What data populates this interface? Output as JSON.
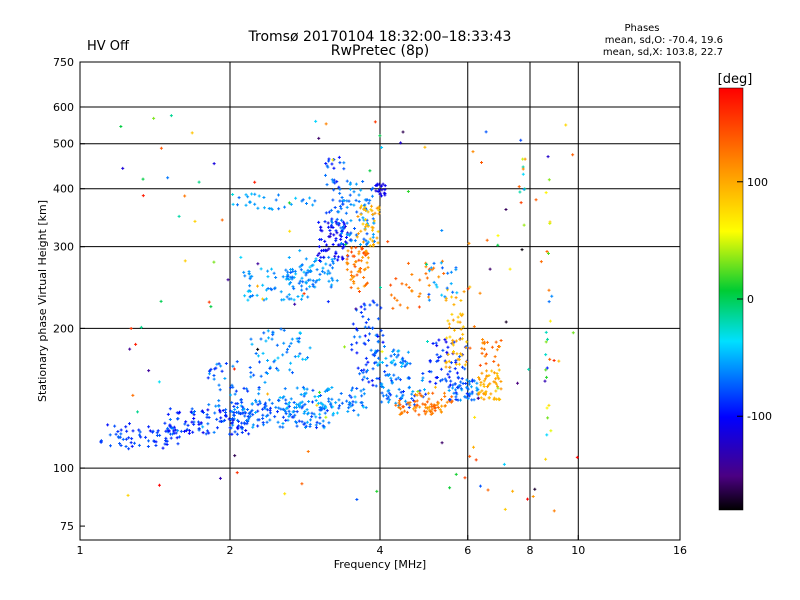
{
  "status": {
    "hv_label": "HV Off",
    "hv_color": "#e00000"
  },
  "header": {
    "title_line1": "Tromsø 20170104 18:32:00–18:33:43",
    "title_line2": "RwPretec (8p)"
  },
  "stats": {
    "heading": "Phases",
    "line_o": "mean, sd,O: -70.4, 19.6",
    "line_x": "mean, sd,X: 103.8, 22.7"
  },
  "colorbar": {
    "label": "[deg]",
    "min": -180,
    "max": 180,
    "ticks": [
      {
        "value": 100,
        "label": "100"
      },
      {
        "value": 0,
        "label": "0"
      },
      {
        "value": -100,
        "label": "-100"
      }
    ]
  },
  "chart_data": {
    "type": "scatter",
    "xlabel": "Frequency [MHz]",
    "ylabel": "Stationary phase Virtual Height [km]",
    "xscale": "log",
    "yscale": "log",
    "xlim": [
      1,
      16
    ],
    "ylim": [
      70,
      750
    ],
    "xticks": [
      {
        "v": 1,
        "l": "1"
      },
      {
        "v": 2,
        "l": "2"
      },
      {
        "v": 4,
        "l": "4"
      },
      {
        "v": 6,
        "l": "6"
      },
      {
        "v": 8,
        "l": "8"
      },
      {
        "v": 10,
        "l": "10"
      },
      {
        "v": 16,
        "l": "16"
      }
    ],
    "yticks": [
      {
        "v": 75,
        "l": "75"
      },
      {
        "v": 100,
        "l": "100"
      },
      {
        "v": 200,
        "l": "200"
      },
      {
        "v": 300,
        "l": "300"
      },
      {
        "v": 400,
        "l": "400"
      },
      {
        "v": 500,
        "l": "500"
      },
      {
        "v": 600,
        "l": "600"
      },
      {
        "v": 750,
        "l": "750"
      }
    ],
    "xgrid": [
      2,
      4,
      6,
      8,
      10
    ],
    "ygrid": [
      100,
      200,
      300,
      400,
      500,
      600
    ],
    "grid": true,
    "clusters": [
      {
        "f": [
          1.1,
          1.6
        ],
        "h": [
          110,
          125
        ],
        "ph": [
          -100,
          -70
        ],
        "n": 70
      },
      {
        "f": [
          1.5,
          2.2
        ],
        "h": [
          118,
          135
        ],
        "ph": [
          -110,
          -60
        ],
        "n": 110
      },
      {
        "f": [
          2.0,
          3.2
        ],
        "h": [
          122,
          140
        ],
        "ph": [
          -90,
          -50
        ],
        "n": 140
      },
      {
        "f": [
          2.5,
          3.8
        ],
        "h": [
          130,
          150
        ],
        "ph": [
          -80,
          -40
        ],
        "n": 90
      },
      {
        "f": [
          1.8,
          2.4
        ],
        "h": [
          135,
          170
        ],
        "ph": [
          -90,
          -50
        ],
        "n": 50
      },
      {
        "f": [
          2.2,
          2.9
        ],
        "h": [
          160,
          200
        ],
        "ph": [
          -80,
          -40
        ],
        "n": 50
      },
      {
        "f": [
          2.1,
          2.9
        ],
        "h": [
          230,
          270
        ],
        "ph": [
          -70,
          -40
        ],
        "n": 70
      },
      {
        "f": [
          2.6,
          3.3
        ],
        "h": [
          245,
          285
        ],
        "ph": [
          -75,
          -45
        ],
        "n": 60
      },
      {
        "f": [
          3.0,
          3.5
        ],
        "h": [
          280,
          340
        ],
        "ph": [
          -120,
          -90
        ],
        "n": 70
      },
      {
        "f": [
          3.1,
          3.4
        ],
        "h": [
          330,
          470
        ],
        "ph": [
          -100,
          -60
        ],
        "n": 40
      },
      {
        "f": [
          3.3,
          3.9
        ],
        "h": [
          300,
          380
        ],
        "ph": [
          -80,
          -50
        ],
        "n": 60
      },
      {
        "f": [
          3.4,
          3.8
        ],
        "h": [
          240,
          300
        ],
        "ph": [
          100,
          150
        ],
        "n": 60
      },
      {
        "f": [
          3.6,
          4.0
        ],
        "h": [
          300,
          370
        ],
        "ph": [
          80,
          110
        ],
        "n": 40
      },
      {
        "f": [
          3.9,
          4.1
        ],
        "h": [
          385,
          410
        ],
        "ph": [
          -120,
          -100
        ],
        "n": 20
      },
      {
        "f": [
          3.5,
          4.1
        ],
        "h": [
          150,
          230
        ],
        "ph": [
          -100,
          -60
        ],
        "n": 70
      },
      {
        "f": [
          3.9,
          4.6
        ],
        "h": [
          165,
          180
        ],
        "ph": [
          -80,
          -40
        ],
        "n": 40
      },
      {
        "f": [
          4.0,
          5.0
        ],
        "h": [
          135,
          160
        ],
        "ph": [
          -90,
          -50
        ],
        "n": 60
      },
      {
        "f": [
          4.3,
          5.2
        ],
        "h": [
          130,
          140
        ],
        "ph": [
          110,
          140
        ],
        "n": 40
      },
      {
        "f": [
          4.6,
          5.6
        ],
        "h": [
          132,
          145
        ],
        "ph": [
          100,
          140
        ],
        "n": 40
      },
      {
        "f": [
          5.0,
          6.0
        ],
        "h": [
          150,
          190
        ],
        "ph": [
          -110,
          -70
        ],
        "n": 60
      },
      {
        "f": [
          5.4,
          6.0
        ],
        "h": [
          160,
          245
        ],
        "ph": [
          80,
          110
        ],
        "n": 50
      },
      {
        "f": [
          5.5,
          6.3
        ],
        "h": [
          140,
          155
        ],
        "ph": [
          -90,
          -50
        ],
        "n": 50
      },
      {
        "f": [
          6.3,
          7.0
        ],
        "h": [
          140,
          165
        ],
        "ph": [
          85,
          110
        ],
        "n": 50
      },
      {
        "f": [
          6.4,
          7.0
        ],
        "h": [
          165,
          190
        ],
        "ph": [
          110,
          140
        ],
        "n": 20
      },
      {
        "f": [
          4.2,
          5.4
        ],
        "h": [
          220,
          280
        ],
        "ph": [
          110,
          150
        ],
        "n": 30
      },
      {
        "f": [
          5.0,
          5.8
        ],
        "h": [
          230,
          280
        ],
        "ph": [
          -80,
          -40
        ],
        "n": 20
      },
      {
        "f": [
          2.0,
          3.0
        ],
        "h": [
          360,
          390
        ],
        "ph": [
          -70,
          -40
        ],
        "n": 30
      },
      {
        "f": [
          3.2,
          3.9
        ],
        "h": [
          375,
          420
        ],
        "ph": [
          -80,
          -50
        ],
        "n": 20
      },
      {
        "f": [
          1.2,
          10.0
        ],
        "h": [
          80,
          600
        ],
        "ph": [
          -180,
          180
        ],
        "n": 130
      },
      {
        "f": [
          8.6,
          8.8
        ],
        "h": [
          110,
          600
        ],
        "ph": [
          -130,
          140
        ],
        "n": 20
      },
      {
        "f": [
          7.6,
          7.9
        ],
        "h": [
          300,
          520
        ],
        "ph": [
          -110,
          150
        ],
        "n": 12
      },
      {
        "f": [
          6.0,
          6.4
        ],
        "h": [
          100,
          540
        ],
        "ph": [
          110,
          150
        ],
        "n": 12
      }
    ]
  }
}
